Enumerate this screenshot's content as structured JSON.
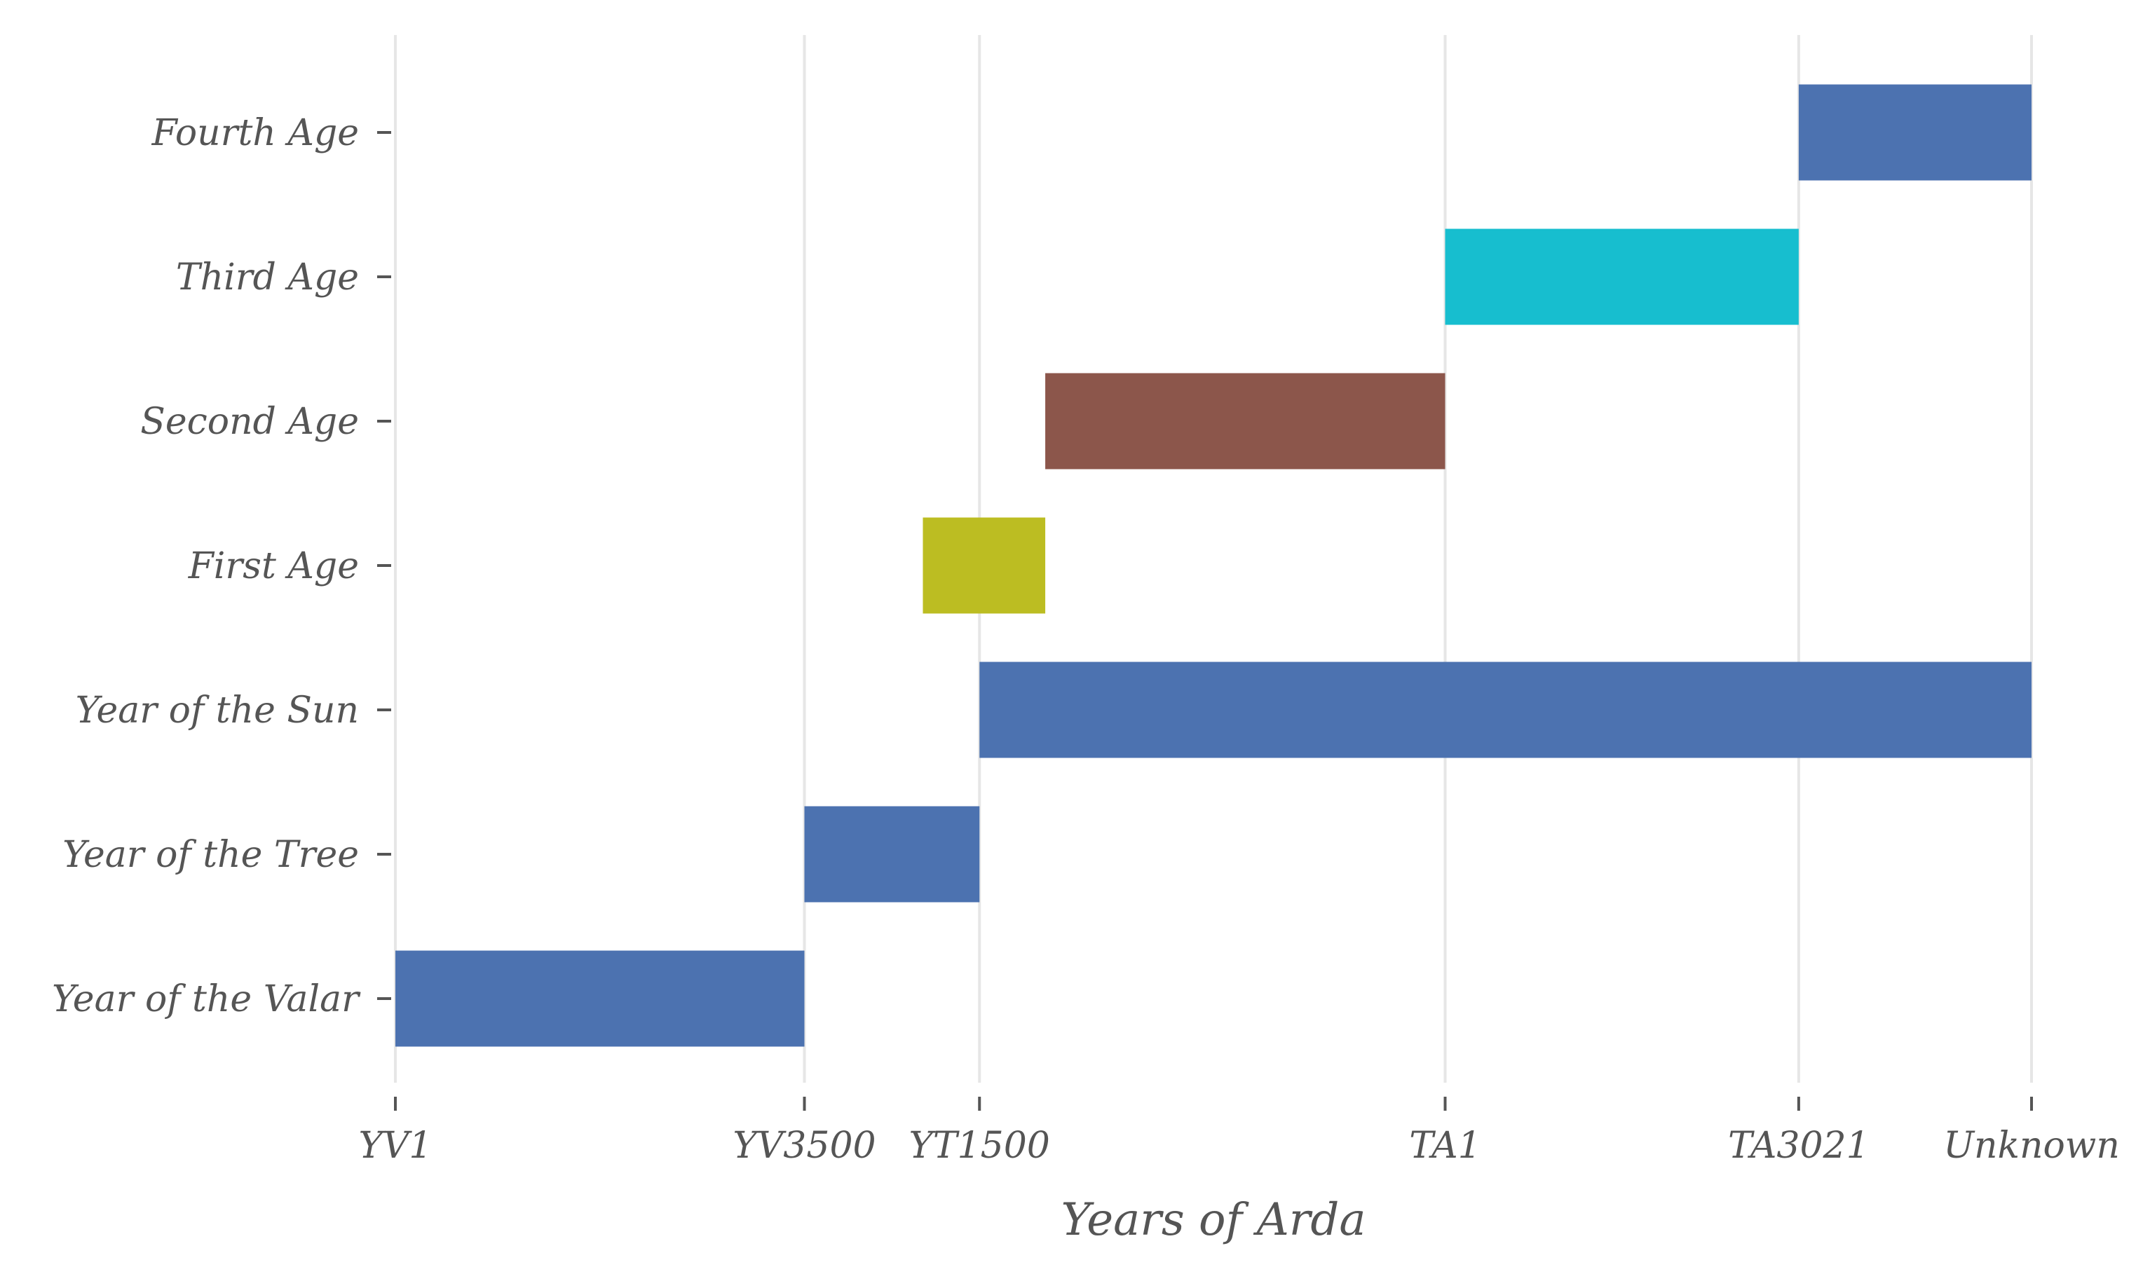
{
  "chart_data": {
    "type": "bar",
    "orientation": "horizontal",
    "title": "",
    "xlabel": "Years of Arda",
    "ylabel": "",
    "grid": "vertical",
    "legend": "none",
    "xlim": [
      0,
      1
    ],
    "x_ticks": [
      {
        "label": "YV1",
        "value": 0
      },
      {
        "label": "YV3500",
        "value": 0.25
      },
      {
        "label": "YT1500",
        "value": 0.357
      },
      {
        "label": "TA1",
        "value": 0.6416
      },
      {
        "label": "TA3021",
        "value": 0.8577
      },
      {
        "label": "Unknown",
        "value": 1
      }
    ],
    "categories": [
      "Year of the Valar",
      "Year of the Tree",
      "Year of the Sun",
      "First Age",
      "Second Age",
      "Third Age",
      "Fourth Age"
    ],
    "bars": [
      {
        "category": "Year of the Valar",
        "start": 0,
        "end": 0.25,
        "color": "#4c72b0"
      },
      {
        "category": "Year of the Tree",
        "start": 0.25,
        "end": 0.357,
        "color": "#4c72b0"
      },
      {
        "category": "Year of the Sun",
        "start": 0.357,
        "end": 1,
        "color": "#4c72b0"
      },
      {
        "category": "First Age",
        "start": 0.3224,
        "end": 0.3972,
        "color": "#bcbd22"
      },
      {
        "category": "Second Age",
        "start": 0.3972,
        "end": 0.6416,
        "color": "#8c564b"
      },
      {
        "category": "Third Age",
        "start": 0.6416,
        "end": 0.8577,
        "color": "#17becf"
      },
      {
        "category": "Fourth Age",
        "start": 0.8577,
        "end": 1,
        "color": "#4c72b0"
      }
    ]
  }
}
